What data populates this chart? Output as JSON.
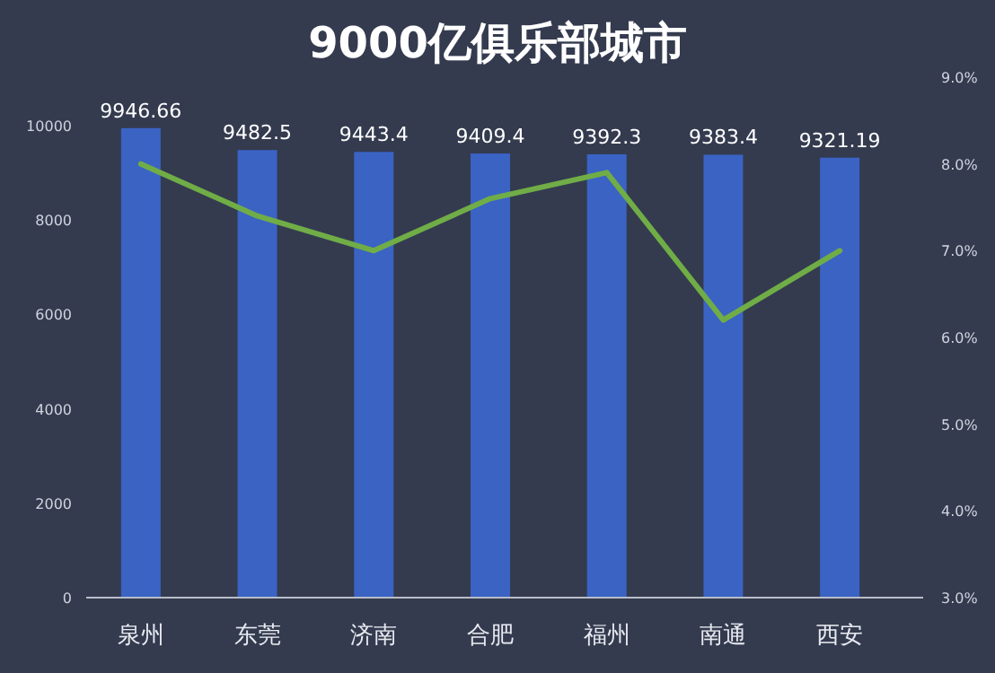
{
  "chart_data": {
    "type": "bar",
    "title": "9000亿俱乐部城市",
    "categories": [
      "泉州",
      "东莞",
      "济南",
      "合肥",
      "福州",
      "南通",
      "西安"
    ],
    "series": [
      {
        "color": "#3a63c4",
        "values": [
          9946.66,
          9482.5,
          9443.4,
          9409.4,
          9392.3,
          9383.4,
          9321.19
        ],
        "value_labels": [
          "9946.66",
          "9482.5",
          "9443.4",
          "9409.4",
          "9392.3",
          "9383.4",
          "9321.19"
        ]
      },
      {
        "type": "line",
        "axis": "y2",
        "color": "#70ad47",
        "values": [
          8.0,
          7.4,
          7.0,
          7.6,
          7.9,
          6.2,
          7.0
        ]
      }
    ],
    "ylim": [
      0,
      10000
    ],
    "yticks": [
      0,
      2000,
      4000,
      6000,
      8000,
      10000
    ],
    "y2lim": [
      3,
      9
    ],
    "y2ticks": [
      {
        "value": 3,
        "label": "3.0%"
      },
      {
        "value": 4,
        "label": "4.0%"
      },
      {
        "value": 5,
        "label": "5.0%"
      },
      {
        "value": 6,
        "label": "6.0%"
      },
      {
        "value": 7,
        "label": "7.0%"
      },
      {
        "value": 8,
        "label": "8.0%"
      },
      {
        "value": 9,
        "label": "9.0%"
      }
    ],
    "grid": false,
    "marker": "none",
    "line_style": "solid"
  }
}
